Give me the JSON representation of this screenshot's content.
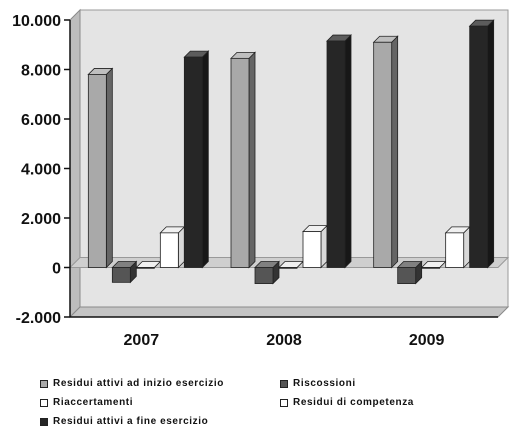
{
  "chart_data": {
    "type": "bar",
    "categories": [
      "2007",
      "2008",
      "2009"
    ],
    "series": [
      {
        "name": "Residui attivi ad inizio esercizio",
        "values": [
          7800,
          8450,
          9100
        ],
        "color": "#a9a9a9"
      },
      {
        "name": "Riscossioni",
        "values": [
          -600,
          -650,
          -650
        ],
        "color": "#555555"
      },
      {
        "name": "Riaccertamenti",
        "values": [
          0,
          0,
          0
        ],
        "color": "#ffffff"
      },
      {
        "name": "Residui di competenza",
        "values": [
          1400,
          1450,
          1400
        ],
        "color": "#ffffff"
      },
      {
        "name": "Residui attivi a fine esercizio",
        "values": [
          8500,
          9150,
          9750
        ],
        "color": "#262626"
      }
    ],
    "ylim": [
      -2000,
      10000
    ],
    "yticks": [
      "-2.000",
      "0",
      "2.000",
      "4.000",
      "6.000",
      "8.000",
      "10.000"
    ],
    "grid": false,
    "legend_position": "bottom",
    "style": "3d-bar"
  }
}
